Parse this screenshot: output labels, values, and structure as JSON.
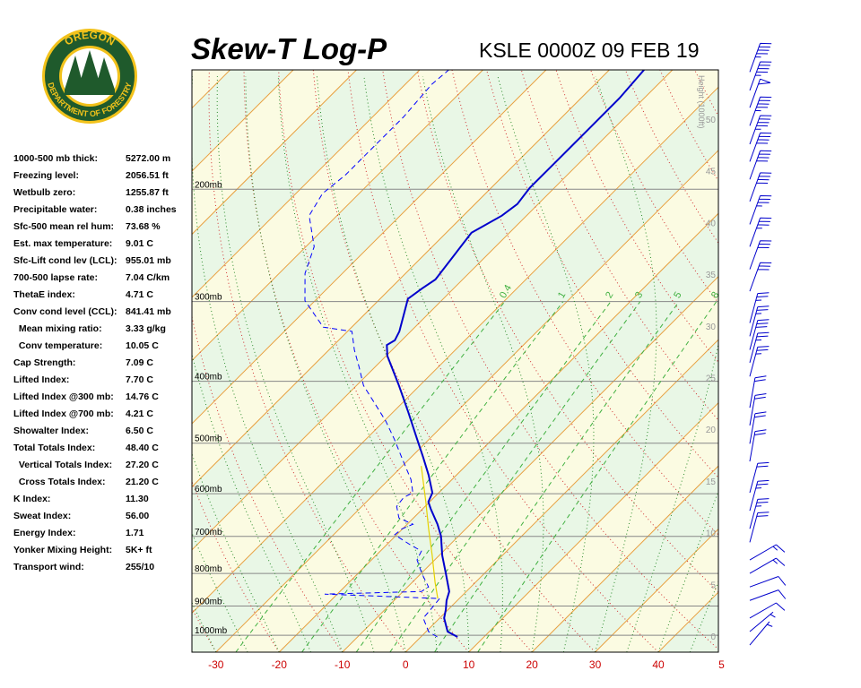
{
  "logo": {
    "top": "OREGON",
    "bottom": "DEPARTMENT OF FORESTRY"
  },
  "indices": [
    [
      "1000-500 mb thick:",
      "5272.00 m"
    ],
    [
      "Freezing level:",
      "2056.51 ft"
    ],
    [
      "Wetbulb zero:",
      "1255.87 ft"
    ],
    [
      "Precipitable water:",
      "0.38 inches"
    ],
    [
      "Sfc-500 mean rel hum:",
      "73.68 %"
    ],
    [
      "Est. max temperature:",
      "9.01 C"
    ],
    [
      "Sfc-Lift cond lev (LCL):",
      "955.01 mb"
    ],
    [
      "700-500 lapse rate:",
      "7.04 C/km"
    ],
    [
      "ThetaE index:",
      "4.71 C"
    ],
    [
      "Conv cond level (CCL):",
      "841.41 mb"
    ],
    [
      "  Mean mixing ratio:",
      "3.33 g/kg"
    ],
    [
      "  Conv temperature:",
      "10.05 C"
    ],
    [
      "Cap Strength:",
      "7.09 C"
    ],
    [
      "Lifted Index:",
      "7.70 C"
    ],
    [
      "Lifted Index @300 mb:",
      "14.76 C"
    ],
    [
      "Lifted Index @700 mb:",
      "4.21 C"
    ],
    [
      "Showalter Index:",
      "6.50 C"
    ],
    [
      "Total Totals Index:",
      "48.40 C"
    ],
    [
      "  Vertical Totals Index:",
      "27.20 C"
    ],
    [
      "  Cross Totals Index:",
      "21.20 C"
    ],
    [
      "K Index:",
      "11.30"
    ],
    [
      "Sweat Index:",
      "56.00"
    ],
    [
      "Energy Index:",
      "1.71"
    ],
    [
      "Yonker Mixing Height:",
      "5K+ ft"
    ],
    [
      "Transport wind:",
      "255/10"
    ]
  ],
  "chart_data": {
    "type": "skew-t",
    "title": "Skew-T Log-P",
    "subtitle": "KSLE 0000Z 09 FEB 19",
    "xlim": [
      -33.8,
      49.5
    ],
    "xticks": [
      -30,
      -20,
      -10,
      0,
      10,
      20,
      30,
      40,
      {
        "value": 50,
        "label": "5"
      }
    ],
    "ylim": [
      1063,
      130
    ],
    "yscale": "log",
    "yticks": [
      {
        "value": 1000,
        "label": "1000mb"
      },
      {
        "value": 900,
        "label": "900mb"
      },
      {
        "value": 800,
        "label": "800mb"
      },
      {
        "value": 700,
        "label": "700mb"
      },
      {
        "value": 600,
        "label": "600mb"
      },
      {
        "value": 500,
        "label": "500mb"
      },
      {
        "value": 400,
        "label": "400mb"
      },
      {
        "value": 300,
        "label": "300mb"
      },
      {
        "value": 200,
        "label": "200mb"
      }
    ],
    "height_axis": {
      "label": "Height (1000ft)",
      "lim": [
        -1.56,
        54.77
      ],
      "ticks": [
        0,
        5,
        10,
        15,
        20,
        25,
        30,
        35,
        40,
        45,
        50
      ]
    },
    "isotherm_interval": 10,
    "dry_adiabat_interval": 10,
    "moist_adiabat_interval": 5,
    "mixing_ratios": [
      0.4,
      1,
      2,
      3,
      5,
      8
    ],
    "mixing_ratio_top": 300,
    "series": [
      {
        "color": "#0000cc",
        "style": "solid",
        "pressure": [
          1006,
          987,
          940,
          911,
          882,
          854,
          800,
          750,
          699,
          670,
          634,
          618,
          598,
          561,
          526,
          493,
          447,
          406,
          365,
          351,
          345,
          334,
          313,
          297,
          286,
          277,
          234,
          220,
          211,
          199,
          181,
          159,
          144,
          130
        ],
        "values": [
          5.8,
          3.4,
          0.7,
          -0.4,
          -1.7,
          -2.7,
          -6.1,
          -9.5,
          -12.8,
          -15.2,
          -18.7,
          -20.2,
          -21.0,
          -24.4,
          -28.1,
          -31.9,
          -37.6,
          -43.3,
          -49.8,
          -51.6,
          -51.1,
          -51.8,
          -53.9,
          -55.6,
          -55.0,
          -54.3,
          -56.0,
          -53.9,
          -53.3,
          -53.9,
          -53.9,
          -53.9,
          -53.9,
          -54.5
        ]
      },
      {
        "color": "#0000ff",
        "style": "dashed",
        "pressure": [
          1006,
          987,
          940,
          911,
          876,
          862,
          854,
          840,
          800,
          762,
          738,
          722,
          696,
          681,
          670,
          655,
          628,
          608,
          598,
          570,
          526,
          493,
          462,
          433,
          406,
          380,
          357,
          334,
          329,
          299,
          271,
          246,
          220,
          203,
          190,
          175,
          154,
          137,
          130
        ],
        "values": [
          2.6,
          0.4,
          -2.6,
          -2.8,
          -3.1,
          -22.0,
          -7.1,
          -6.7,
          -9.9,
          -12.8,
          -13.5,
          -16.2,
          -20.3,
          -20.1,
          -19.1,
          -22.3,
          -24.5,
          -24.8,
          -24.1,
          -26.5,
          -31.5,
          -35.5,
          -39.7,
          -44.3,
          -48.9,
          -52.5,
          -56.0,
          -59.3,
          -64.5,
          -71.6,
          -75.9,
          -78.7,
          -84.4,
          -85.8,
          -85.1,
          -85.1,
          -85.1,
          -85.8,
          -85.4
        ]
      },
      {
        "color": "#e6d200",
        "style": "solid",
        "pressure": [
          876,
          826,
          750,
          681,
          618,
          543
        ],
        "values": [
          -3.4,
          -6.4,
          -11.1,
          -15.9,
          -20.6,
          -27.0
        ]
      }
    ],
    "winds": {
      "pressure": [
        131,
        140,
        149,
        159,
        170,
        181,
        193,
        209,
        227,
        246,
        267,
        289,
        324,
        340,
        357,
        374,
        393,
        440,
        469,
        501,
        534,
        598,
        638,
        681,
        715,
        762,
        800,
        840,
        882,
        940,
        987,
        1036
      ],
      "speed": [
        45,
        45,
        50,
        45,
        45,
        40,
        40,
        40,
        35,
        35,
        30,
        30,
        25,
        25,
        30,
        25,
        25,
        20,
        20,
        20,
        20,
        20,
        25,
        25,
        20,
        15,
        15,
        10,
        10,
        10,
        5,
        5
      ],
      "direction": [
        20,
        20,
        20,
        20,
        20,
        20,
        20,
        20,
        20,
        20,
        20,
        20,
        15,
        15,
        15,
        15,
        15,
        10,
        10,
        10,
        10,
        15,
        15,
        15,
        15,
        60,
        60,
        70,
        70,
        60,
        50,
        40
      ],
      "color": "#0000cc"
    }
  }
}
